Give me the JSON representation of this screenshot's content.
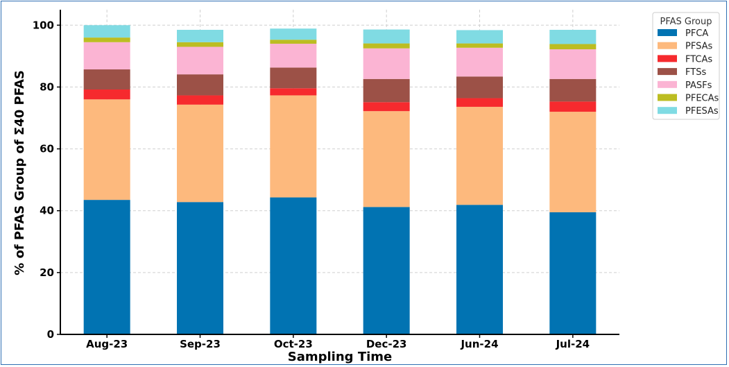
{
  "chart_data": {
    "type": "bar",
    "stacked": true,
    "categories": [
      "Aug-23",
      "Sep-23",
      "Oct-23",
      "Dec-23",
      "Jun-24",
      "Jul-24"
    ],
    "series": [
      {
        "name": "PFCA",
        "color": "#0173b2",
        "values": [
          43.5,
          42.8,
          44.3,
          41.2,
          41.9,
          39.5
        ]
      },
      {
        "name": "PFSAs",
        "color": "#fdb97d",
        "values": [
          32.5,
          31.5,
          33.0,
          31.0,
          31.7,
          32.5
        ]
      },
      {
        "name": "FTCAs",
        "color": "#f62a2e",
        "values": [
          3.2,
          3.0,
          2.3,
          2.9,
          2.8,
          3.3
        ]
      },
      {
        "name": "FTSs",
        "color": "#9c5147",
        "values": [
          6.5,
          6.8,
          6.7,
          7.5,
          7.0,
          7.3
        ]
      },
      {
        "name": "PASFs",
        "color": "#fbb4d3",
        "values": [
          8.8,
          8.9,
          7.7,
          9.9,
          9.3,
          9.6
        ]
      },
      {
        "name": "PFECAs",
        "color": "#bcbd22",
        "values": [
          1.5,
          1.5,
          1.3,
          1.6,
          1.4,
          1.7
        ]
      },
      {
        "name": "PFESAs",
        "color": "#80dbe3",
        "values": [
          4.0,
          4.0,
          3.6,
          4.5,
          4.3,
          4.6
        ]
      }
    ],
    "xlabel": "Sampling Time",
    "ylabel": "% of PFAS Group of Σ40 PFAS",
    "ylim": [
      0,
      105
    ],
    "yticks": [
      0,
      20,
      40,
      60,
      80,
      100
    ],
    "grid": true,
    "legend": {
      "title": "PFAS Group",
      "placement": "top-right outside"
    }
  }
}
